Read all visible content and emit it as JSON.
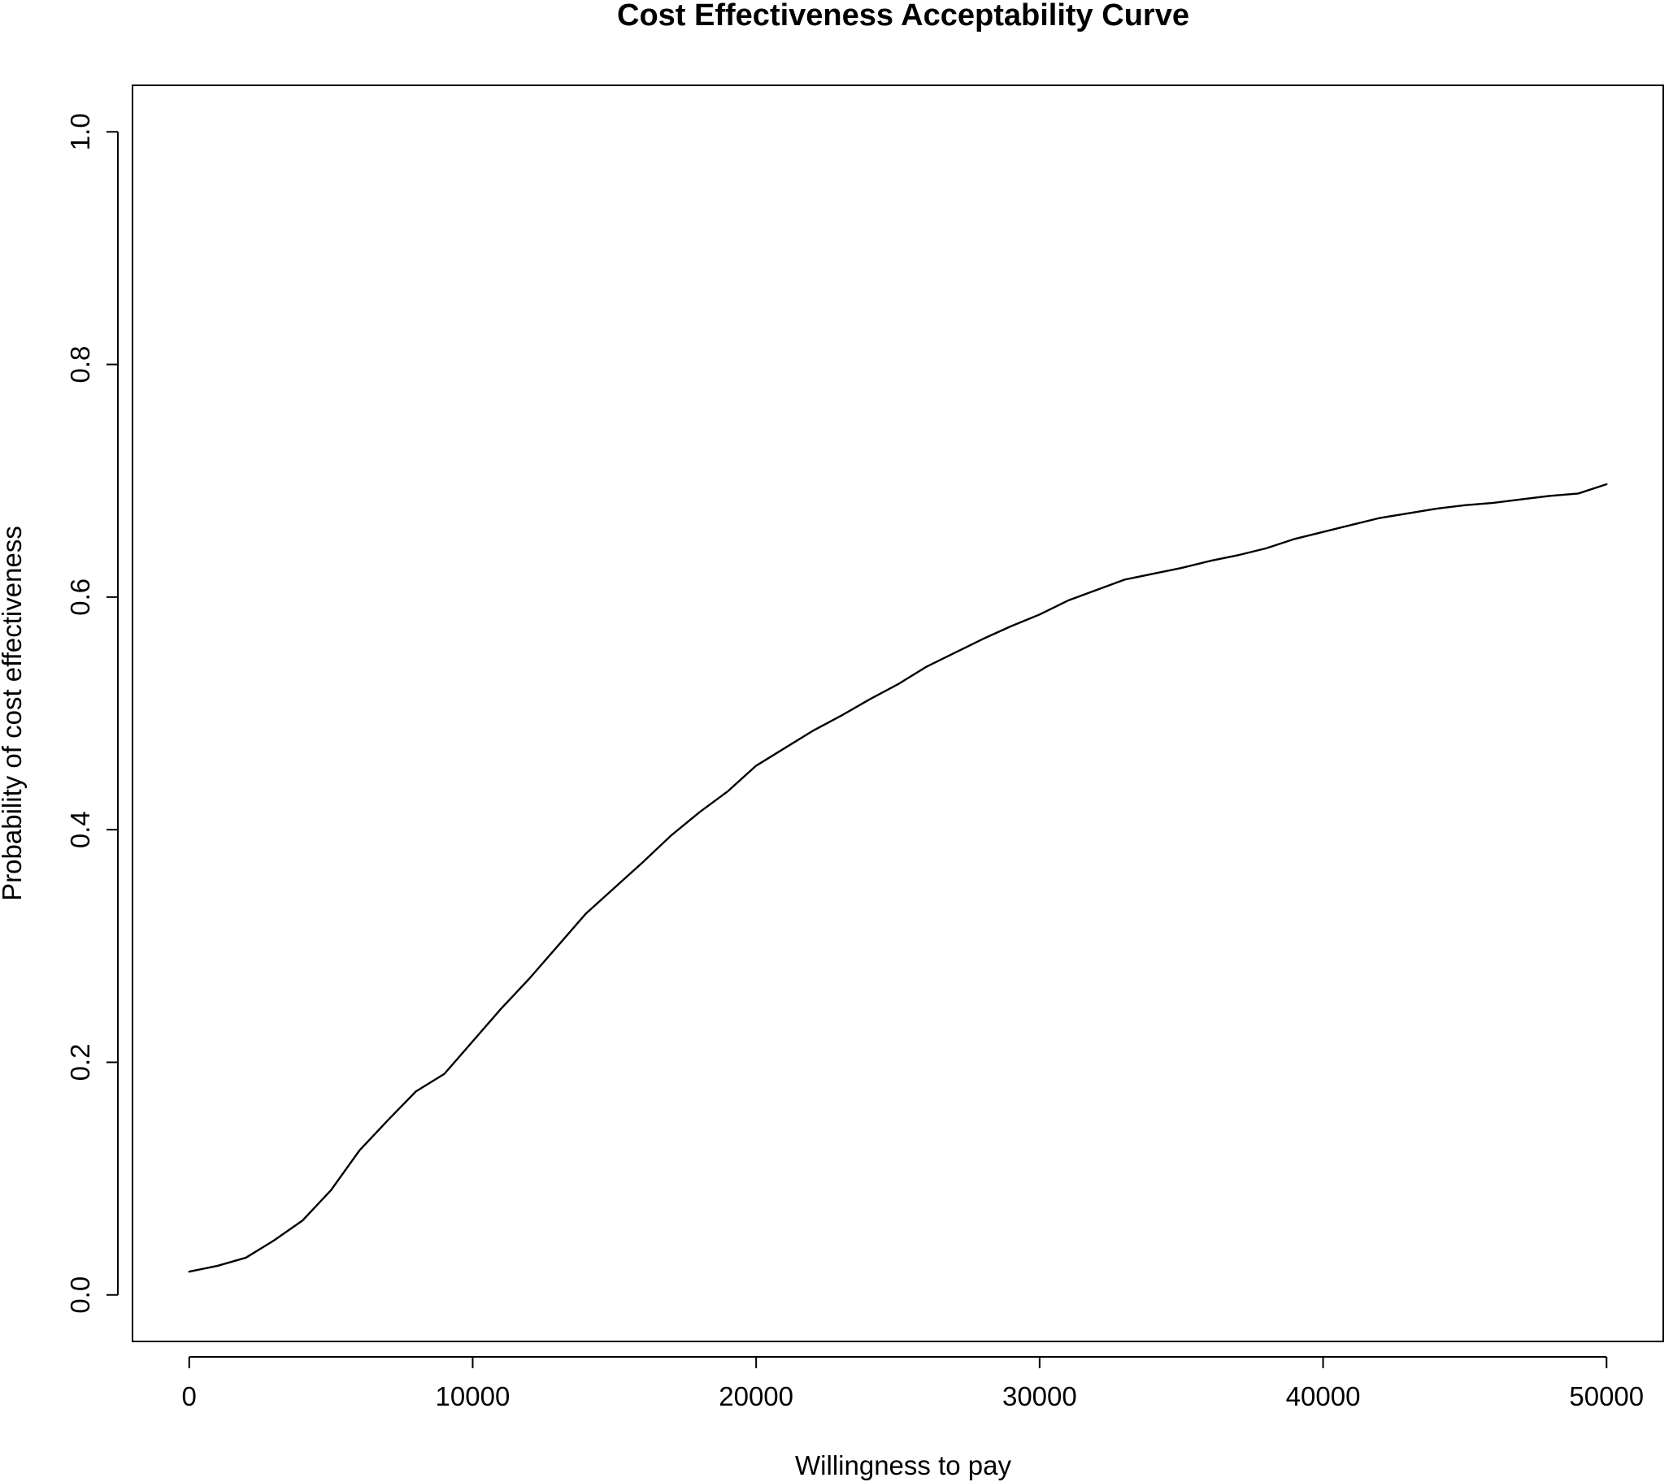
{
  "chart_data": {
    "type": "line",
    "title": "Cost Effectiveness Acceptability Curve",
    "xlabel": "Willingness to pay",
    "ylabel": "Probability of cost effectiveness",
    "xlim": [
      -2000,
      52000
    ],
    "ylim": [
      -0.04,
      1.04
    ],
    "xticks": [
      0,
      10000,
      20000,
      30000,
      40000,
      50000
    ],
    "yticks": [
      0.0,
      0.2,
      0.4,
      0.6,
      0.8,
      1.0
    ],
    "xtick_labels": [
      "0",
      "10000",
      "20000",
      "30000",
      "40000",
      "50000"
    ],
    "ytick_labels": [
      "0.0",
      "0.2",
      "0.4",
      "0.6",
      "0.8",
      "1.0"
    ],
    "grid": false,
    "legend": "none",
    "series": [
      {
        "x": [
          0,
          1000,
          2000,
          3000,
          4000,
          5000,
          6000,
          7000,
          8000,
          9000,
          10000,
          11000,
          12000,
          13000,
          14000,
          15000,
          16000,
          17000,
          18000,
          19000,
          20000,
          21000,
          22000,
          23000,
          24000,
          25000,
          26000,
          27000,
          28000,
          29000,
          30000,
          31000,
          32000,
          33000,
          34000,
          35000,
          36000,
          37000,
          38000,
          39000,
          40000,
          41000,
          42000,
          43000,
          44000,
          45000,
          46000,
          47000,
          48000,
          49000,
          50000
        ],
        "y": [
          0.02,
          0.025,
          0.032,
          0.047,
          0.064,
          0.09,
          0.124,
          0.15,
          0.175,
          0.19,
          0.218,
          0.246,
          0.272,
          0.3,
          0.328,
          0.35,
          0.372,
          0.395,
          0.415,
          0.433,
          0.455,
          0.47,
          0.485,
          0.498,
          0.512,
          0.525,
          0.54,
          0.552,
          0.564,
          0.575,
          0.585,
          0.597,
          0.606,
          0.615,
          0.62,
          0.625,
          0.631,
          0.636,
          0.642,
          0.65,
          0.656,
          0.662,
          0.668,
          0.672,
          0.676,
          0.679,
          0.681,
          0.684,
          0.687,
          0.689,
          0.697
        ]
      }
    ]
  },
  "style": {
    "line_color": "#000000",
    "frame_color": "#000000",
    "background": "#ffffff"
  }
}
